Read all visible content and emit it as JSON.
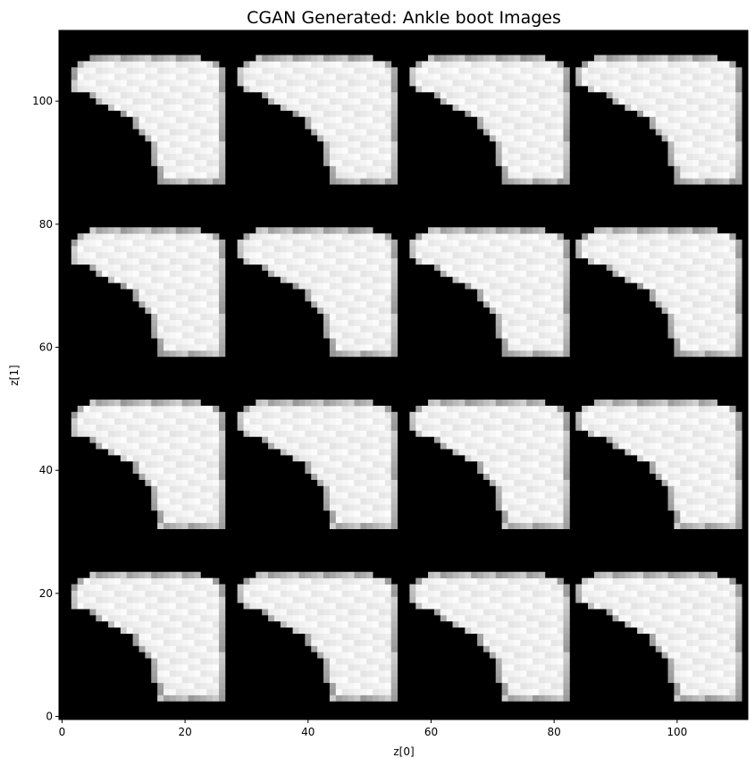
{
  "chart_data": {
    "type": "heatmap",
    "title": "CGAN Generated: Ankle boot Images",
    "xlabel": "z[0]",
    "ylabel": "z[1]",
    "xlim": [
      -0.5,
      111.5
    ],
    "ylim": [
      111.5,
      -0.5
    ],
    "xticks": [
      0,
      20,
      40,
      60,
      80,
      100
    ],
    "yticks": [
      0,
      20,
      40,
      60,
      80,
      100
    ],
    "colormap": "gray",
    "background": "#000000",
    "grid": {
      "rows": 4,
      "cols": 4,
      "tile_size": 28,
      "image_class": "Ankle boot"
    },
    "grid_on": false
  }
}
